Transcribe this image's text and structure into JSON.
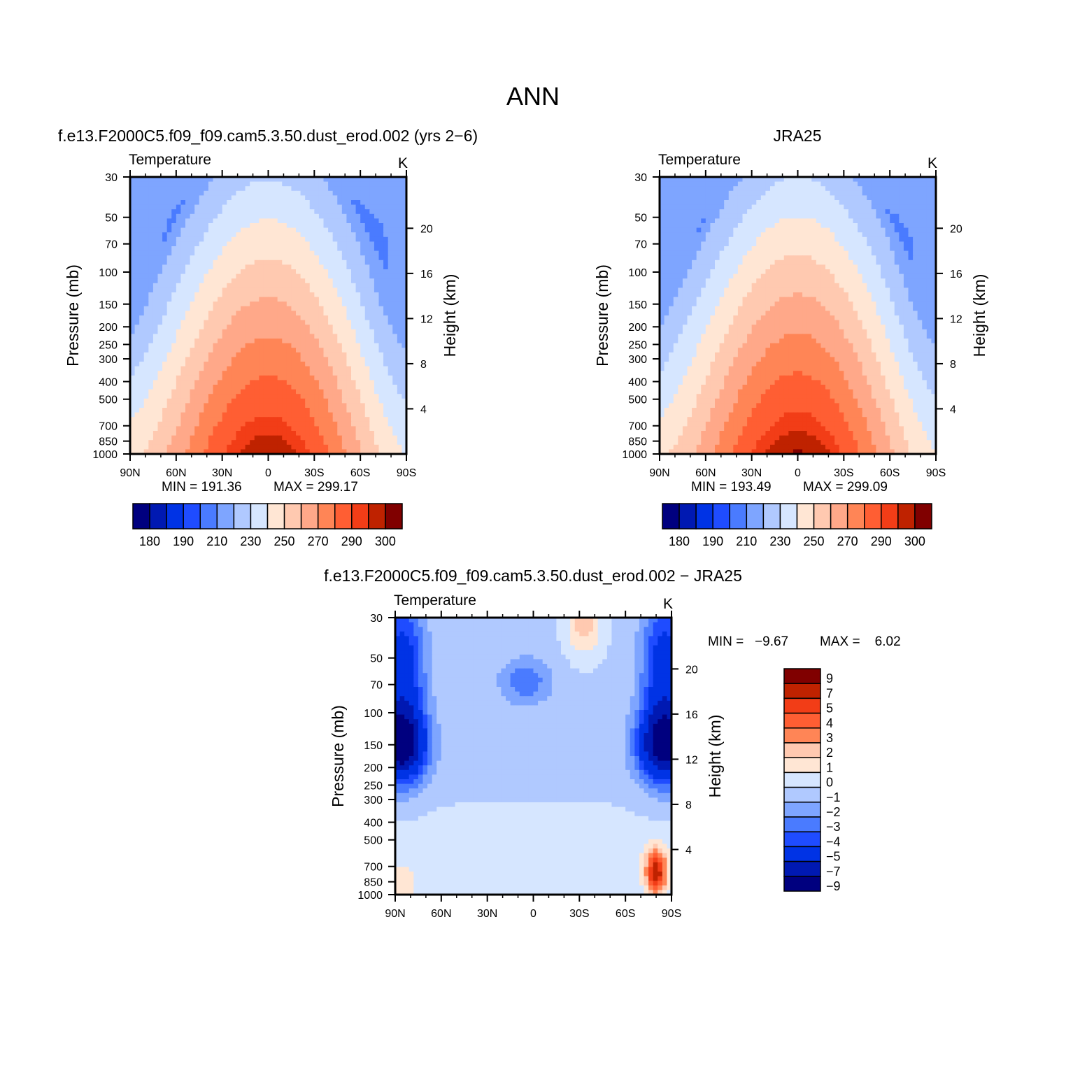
{
  "main_title": "ANN",
  "colors": {
    "abs_levels": [
      "#00007f",
      "#0019b2",
      "#0033e5",
      "#1f4cff",
      "#4a7bff",
      "#7ea5ff",
      "#b0c9ff",
      "#d6e6ff",
      "#ffe6d4",
      "#ffc9b0",
      "#ffa889",
      "#ff8556",
      "#ff5e33",
      "#f23d17",
      "#bf2200",
      "#800000"
    ],
    "diff_levels": [
      "#00007f",
      "#0019b2",
      "#0033e5",
      "#1f4cff",
      "#4a7bff",
      "#7ea5ff",
      "#b0c9ff",
      "#d6e6ff",
      "#ffe6d4",
      "#ffc9b0",
      "#ff8556",
      "#ff5e33",
      "#f23d17",
      "#bf2200",
      "#800000"
    ],
    "missing": "#ffffff"
  },
  "chart_data": [
    {
      "type": "heatmap",
      "title": "f.e13.F2000C5.f09_f09.cam5.3.50.dust_erod.002 (yrs 2−6)",
      "left_string": "Temperature",
      "right_string": "K",
      "xlabel": "",
      "ylabel": "Pressure (mb)",
      "ylabel_right": "Height (km)",
      "x_ticks": [
        "90N",
        "60N",
        "30N",
        "0",
        "30S",
        "60S",
        "90S"
      ],
      "x_range": [
        90,
        -90
      ],
      "y_ticks": [
        30,
        50,
        70,
        100,
        150,
        200,
        250,
        300,
        400,
        500,
        700,
        850,
        1000
      ],
      "y_range": [
        30,
        1000
      ],
      "y_right_ticks": [
        4,
        8,
        12,
        16,
        20
      ],
      "min_label": "MIN = 191.36",
      "max_label": "MAX = 299.17",
      "min": 191.36,
      "max": 299.17,
      "colorbar_labels": [
        "180",
        "190",
        "210",
        "230",
        "250",
        "270",
        "290",
        "300"
      ],
      "contour_levels": [
        180,
        185,
        190,
        200,
        210,
        220,
        230,
        240,
        250,
        260,
        270,
        280,
        290,
        295,
        300
      ]
    },
    {
      "type": "heatmap",
      "title": "JRA25",
      "left_string": "Temperature",
      "right_string": "K",
      "xlabel": "",
      "ylabel": "Pressure (mb)",
      "ylabel_right": "Height (km)",
      "x_ticks": [
        "90N",
        "60N",
        "30N",
        "0",
        "30S",
        "60S",
        "90S"
      ],
      "x_range": [
        90,
        -90
      ],
      "y_ticks": [
        30,
        50,
        70,
        100,
        150,
        200,
        250,
        300,
        400,
        500,
        700,
        850,
        1000
      ],
      "y_range": [
        30,
        1000
      ],
      "y_right_ticks": [
        4,
        8,
        12,
        16,
        20
      ],
      "min_label": "MIN = 193.49",
      "max_label": "MAX = 299.09",
      "min": 193.49,
      "max": 299.09,
      "colorbar_labels": [
        "180",
        "190",
        "210",
        "230",
        "250",
        "270",
        "290",
        "300"
      ],
      "contour_levels": [
        180,
        185,
        190,
        200,
        210,
        220,
        230,
        240,
        250,
        260,
        270,
        280,
        290,
        295,
        300
      ]
    },
    {
      "type": "heatmap",
      "title": "f.e13.F2000C5.f09_f09.cam5.3.50.dust_erod.002 − JRA25",
      "left_string": "Temperature",
      "right_string": "K",
      "xlabel": "",
      "ylabel": "Pressure (mb)",
      "ylabel_right": "Height (km)",
      "x_ticks": [
        "90N",
        "60N",
        "30N",
        "0",
        "30S",
        "60S",
        "90S"
      ],
      "x_range": [
        90,
        -90
      ],
      "y_ticks": [
        30,
        50,
        70,
        100,
        150,
        200,
        250,
        300,
        400,
        500,
        700,
        850,
        1000
      ],
      "y_range": [
        30,
        1000
      ],
      "y_right_ticks": [
        4,
        8,
        12,
        16,
        20
      ],
      "min_label": "MIN =   −9.67",
      "max_label": "MAX =    6.02",
      "min": -9.67,
      "max": 6.02,
      "colorbar_labels": [
        "9",
        "7",
        "5",
        "4",
        "3",
        "2",
        "1",
        "0",
        "−1",
        "−2",
        "−3",
        "−4",
        "−5",
        "−7",
        "−9"
      ],
      "contour_levels": [
        -9,
        -7,
        -5,
        -4,
        -3,
        -2,
        -1,
        0,
        1,
        2,
        3,
        4,
        5,
        7,
        9
      ]
    }
  ]
}
